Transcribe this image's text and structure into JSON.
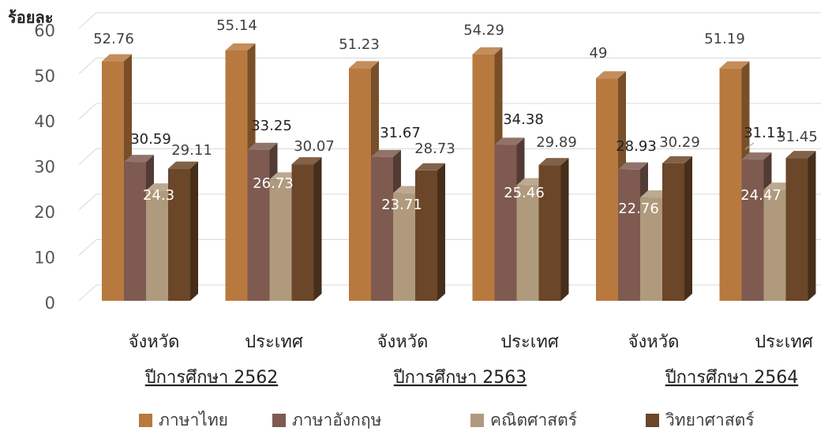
{
  "chart_data": {
    "type": "bar",
    "ylabel": "ร้อยละ",
    "ylim": [
      0,
      60
    ],
    "yticks": [
      "0",
      "10",
      "20",
      "30",
      "40",
      "50",
      "60"
    ],
    "grid": true,
    "legend_position": "bottom",
    "categories": [
      "จังหวัด",
      "ประเทศ",
      "จังหวัด",
      "ประเทศ",
      "จังหวัด",
      "ประเทศ"
    ],
    "groups": [
      "ปีการศึกษา 2562",
      "ปีการศึกษา 2563",
      "ปีการศึกษา 2564"
    ],
    "series": [
      {
        "name": "ภาษาไทย",
        "color": "#B8793F",
        "values": [
          52.76,
          55.14,
          51.23,
          54.29,
          49,
          51.19
        ],
        "labels": [
          "52.76",
          "55.14",
          "51.23",
          "54.29",
          "49",
          "51.19"
        ]
      },
      {
        "name": "ภาษาอังกฤษ",
        "color": "#7E5A50",
        "values": [
          30.59,
          33.25,
          31.67,
          34.38,
          28.93,
          31.11
        ],
        "labels": [
          "30.59",
          "33.25",
          "31.67",
          "34.38",
          "28.93",
          "31.11"
        ]
      },
      {
        "name": "คณิตศาสตร์",
        "color": "#B09A7D",
        "values": [
          24.3,
          26.73,
          23.71,
          25.46,
          22.76,
          24.47
        ],
        "labels": [
          "24.3",
          "26.73",
          "23.71",
          "25.46",
          "22.76",
          "24.47"
        ]
      },
      {
        "name": "วิทยาศาสตร์",
        "color": "#6B4628",
        "values": [
          29.11,
          30.07,
          28.73,
          29.89,
          30.29,
          31.45
        ],
        "labels": [
          "29.11",
          "30.07",
          "28.73",
          "29.89",
          "30.29",
          "31.45"
        ]
      }
    ]
  }
}
